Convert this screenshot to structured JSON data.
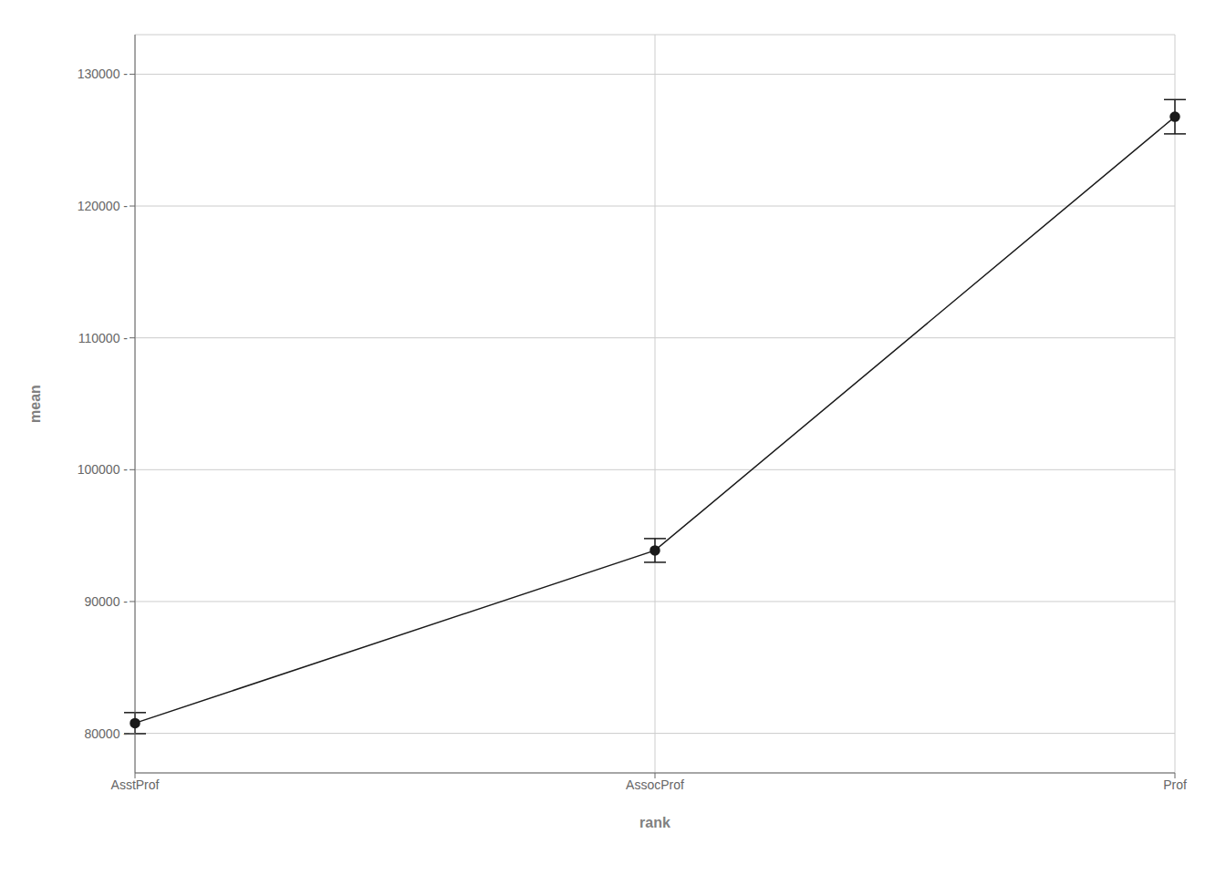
{
  "chart_data": {
    "type": "line",
    "categories": [
      "AsstProf",
      "AssocProf",
      "Prof"
    ],
    "values": [
      80776.0,
      93876.0,
      126772.0
    ],
    "errors": [
      800.0,
      900.0,
      1300.0
    ],
    "xlabel": "rank",
    "ylabel": "mean",
    "ylim": [
      77000,
      133000
    ],
    "yticks": [
      {
        "value": 80000,
        "label": "80000 -"
      },
      {
        "value": 90000,
        "label": "90000 -"
      },
      {
        "value": 100000,
        "label": "100000 -"
      },
      {
        "value": 110000,
        "label": "110000 -"
      },
      {
        "value": 120000,
        "label": "120000 -"
      },
      {
        "value": 130000,
        "label": "130000 -"
      }
    ],
    "grid": true,
    "color": "#1a1a1a",
    "marker": "circle"
  }
}
